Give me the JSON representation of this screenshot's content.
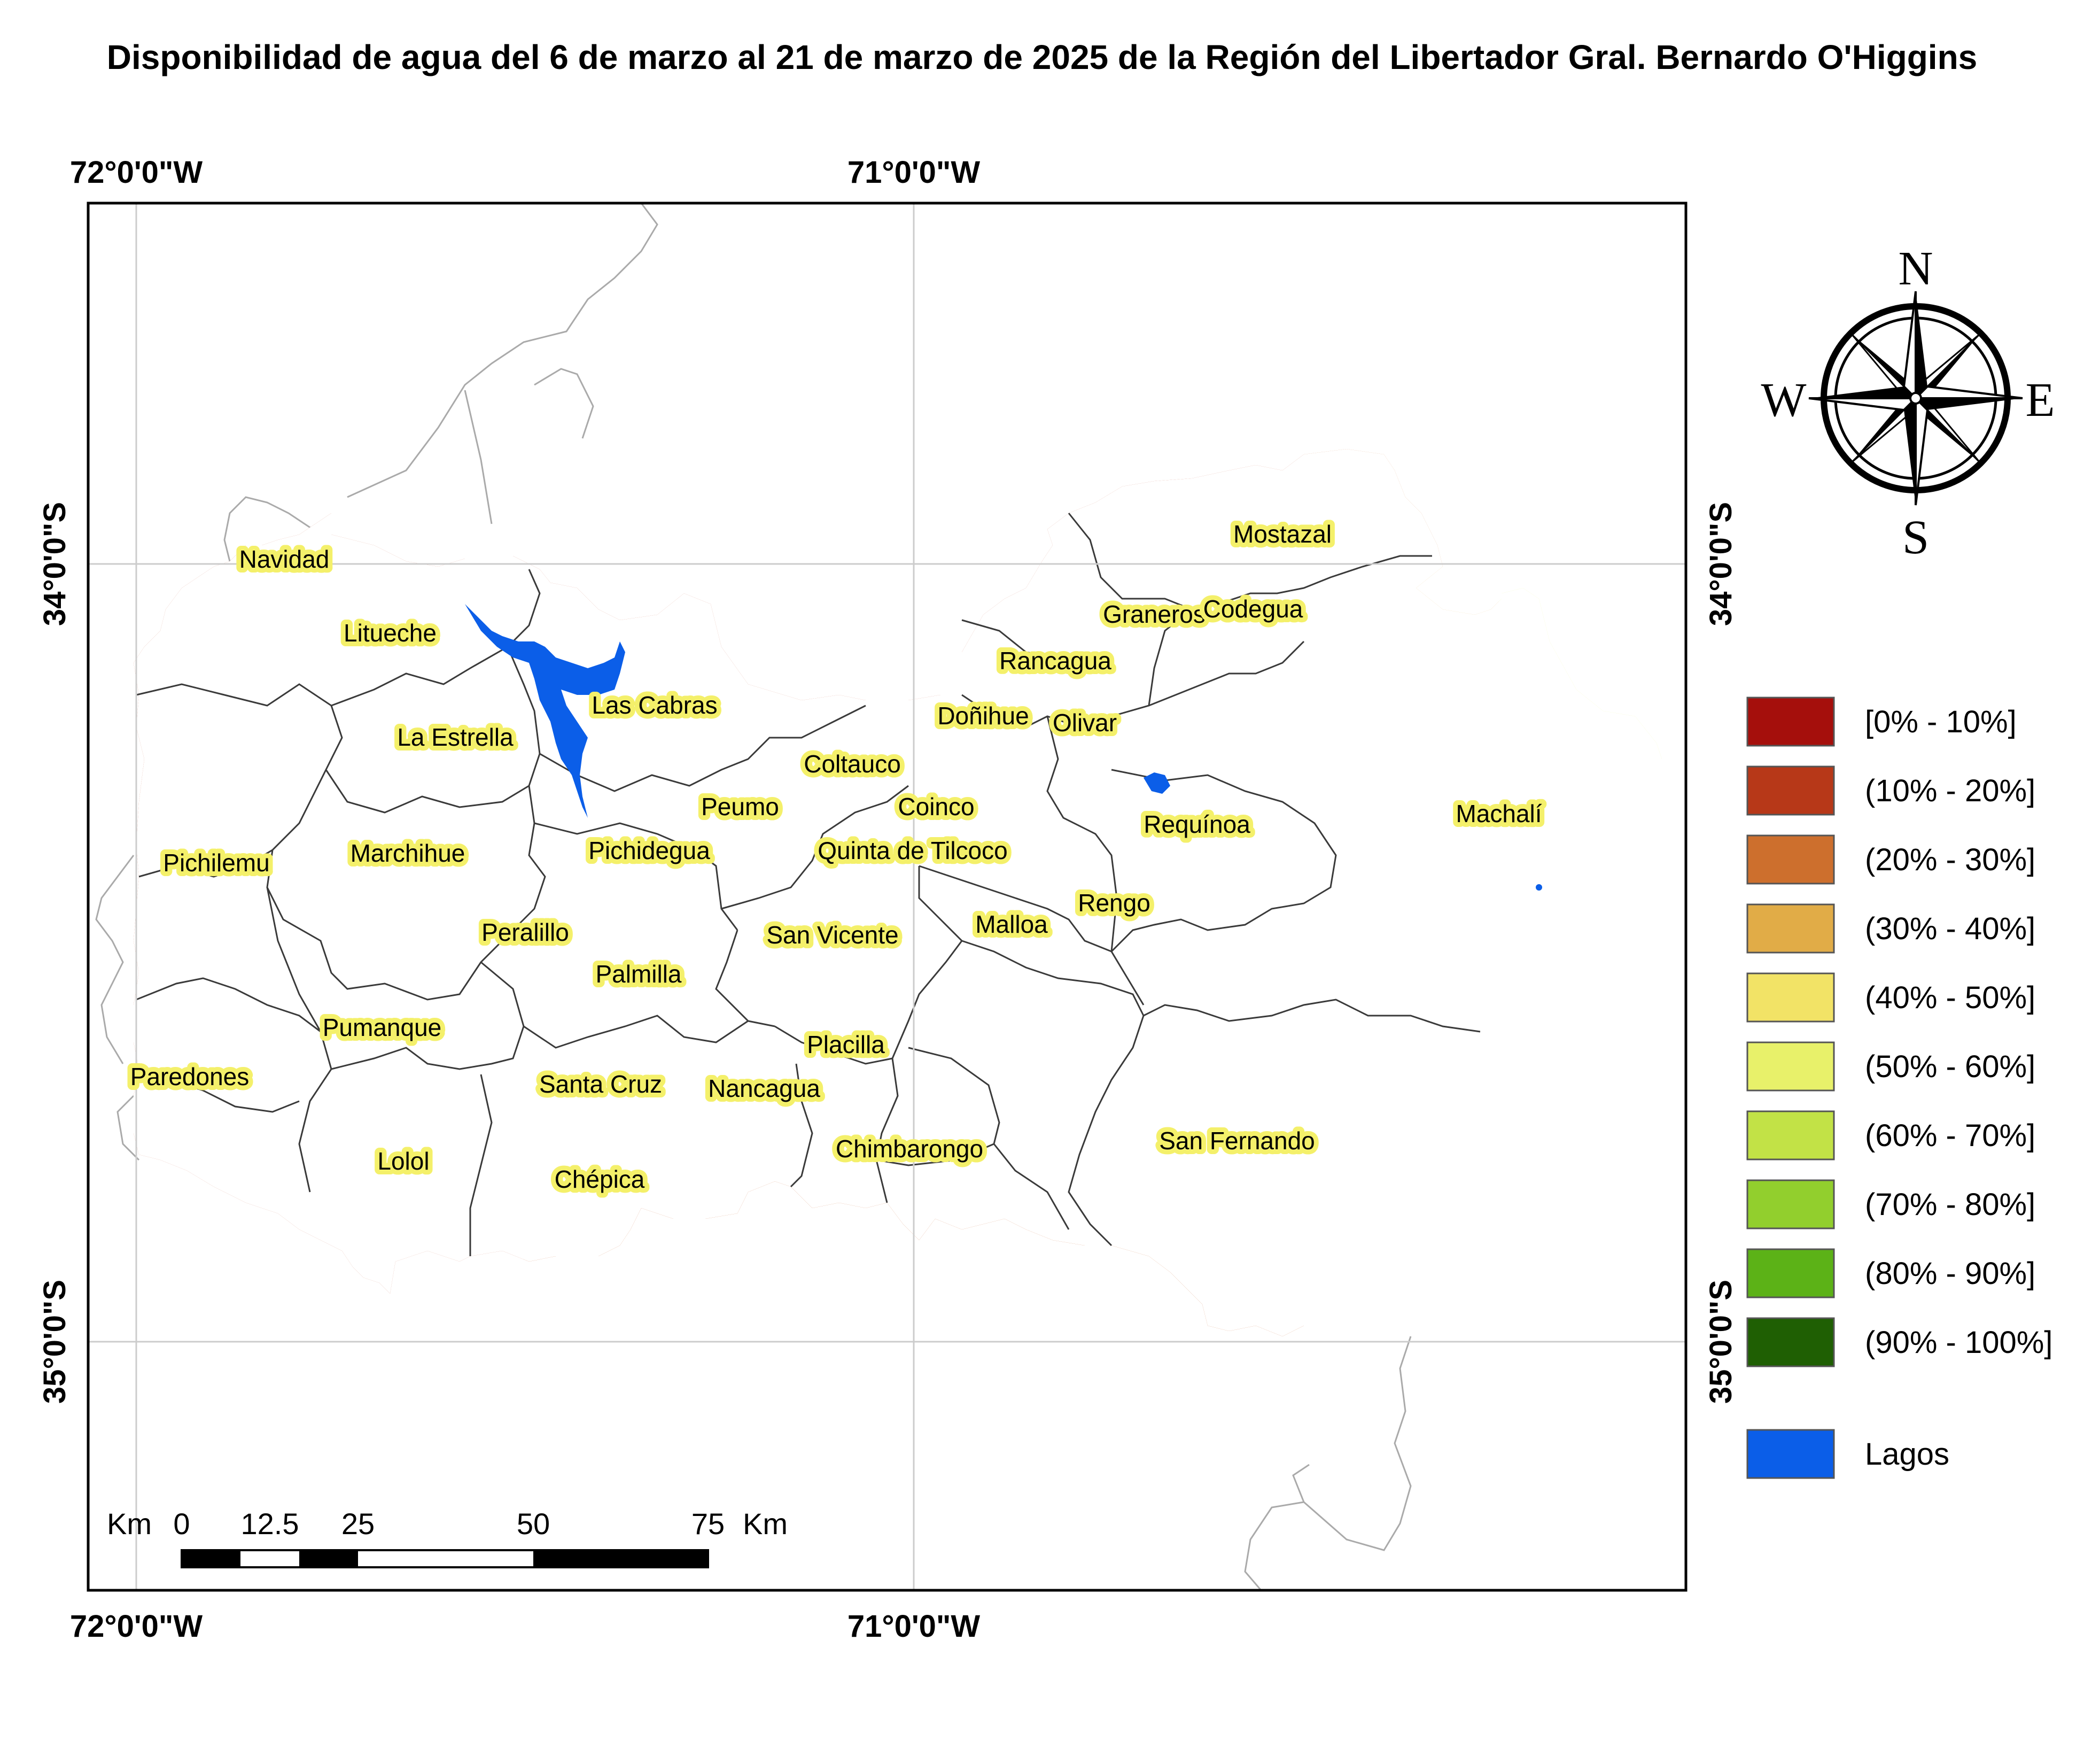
{
  "title": "Disponibilidad de agua del 6 de marzo al 21 de marzo de 2025 de la Región del Libertador Gral. Bernardo O'Higgins",
  "graticule": {
    "lon_top": [
      "72°0'0\"W",
      "71°0'0\"W"
    ],
    "lon_bottom": [
      "72°0'0\"W",
      "71°0'0\"W"
    ],
    "lat_left": [
      "34°0'0\"S",
      "35°0'0\"S"
    ],
    "lat_right": [
      "34°0'0\"S",
      "35°0'0\"S"
    ]
  },
  "legend": [
    {
      "label": "[0% - 10%]",
      "color": "#a50f0c"
    },
    {
      "label": "(10% - 20%]",
      "color": "#b73818"
    },
    {
      "label": "(20% - 30%]",
      "color": "#cd6f2d"
    },
    {
      "label": "(30% - 40%]",
      "color": "#e1ac47"
    },
    {
      "label": "(40% - 50%]",
      "color": "#f2e366"
    },
    {
      "label": "(50% - 60%]",
      "color": "#e8f16a"
    },
    {
      "label": "(60% - 70%]",
      "color": "#c2e246"
    },
    {
      "label": "(70% - 80%]",
      "color": "#92cf2d"
    },
    {
      "label": "(80% - 90%]",
      "color": "#5cb217"
    },
    {
      "label": "(90% - 100%]",
      "color": "#1f5f03"
    },
    {
      "label": "Lagos",
      "color": "#0b5ee8"
    }
  ],
  "compass": {
    "n": "N",
    "s": "S",
    "e": "E",
    "w": "W"
  },
  "scale_bar": {
    "unit_left": "Km",
    "unit_right": "Km",
    "ticks": [
      "0",
      "12.5",
      "25",
      "50",
      "75"
    ]
  },
  "places": [
    "Navidad",
    "Mostazal",
    "Litueche",
    "Graneros",
    "Codegua",
    "Rancagua",
    "Las Cabras",
    "Doñihue",
    "Olivar",
    "La Estrella",
    "Coltauco",
    "Peumo",
    "Coinco",
    "Requínoa",
    "Machalí",
    "Pichilemu",
    "Marchihue",
    "Pichidegua",
    "Quinta de Tilcoco",
    "Rengo",
    "Malloa",
    "Peralillo",
    "San Vicente",
    "Palmilla",
    "Pumanque",
    "Placilla",
    "Paredones",
    "Santa Cruz",
    "Nancagua",
    "Chimbarongo",
    "San Fernando",
    "Lolol",
    "Chépica"
  ]
}
